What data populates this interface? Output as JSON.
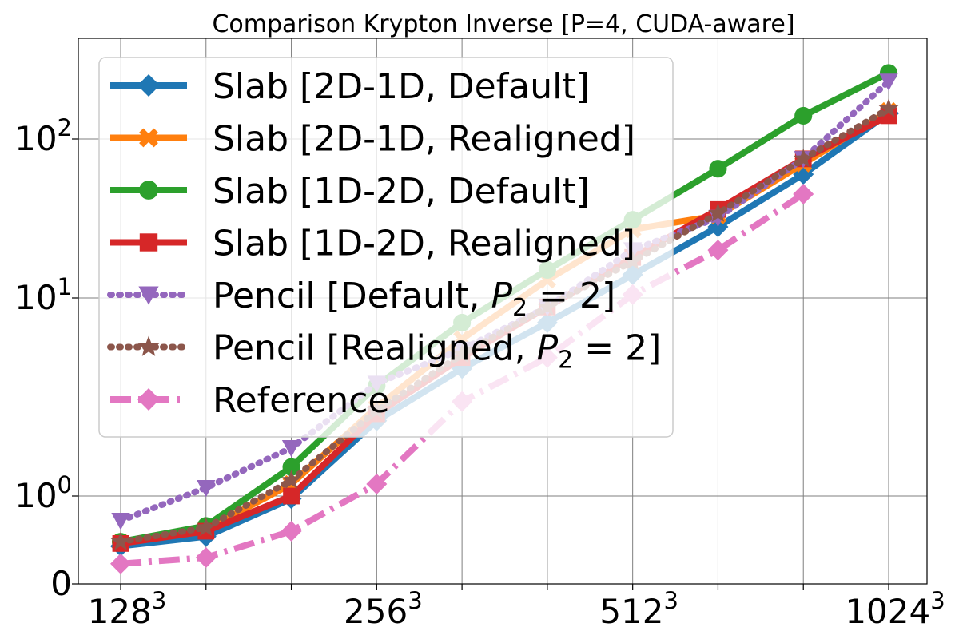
{
  "chart_data": {
    "type": "line",
    "title": "Comparison Krypton Inverse [P=4, CUDA-aware]",
    "xlabel": "",
    "ylabel": "",
    "y_scale": "symlog",
    "grid": true,
    "legend_placement": "upper-left",
    "x_ticks": [
      {
        "index": 0,
        "base": "128",
        "exp": "3"
      },
      {
        "index": 3,
        "base": "256",
        "exp": "3"
      },
      {
        "index": 6,
        "base": "512",
        "exp": "3"
      },
      {
        "index": 9,
        "base": "1024",
        "exp": "3"
      }
    ],
    "y_ticks": [
      {
        "value": 0,
        "label": "0"
      },
      {
        "value": 1,
        "base": "10",
        "exp": "0"
      },
      {
        "value": 10,
        "base": "10",
        "exp": "1"
      },
      {
        "value": 100,
        "base": "10",
        "exp": "2"
      }
    ],
    "x_count": 10,
    "series": [
      {
        "name": "Slab [2D-1D, Default]",
        "color": "#1f77b4",
        "marker": "diamond",
        "linestyle": "solid",
        "values": [
          0.43,
          0.54,
          0.97,
          2.4,
          4.4,
          7.5,
          14,
          28,
          60,
          145
        ]
      },
      {
        "name": "Slab [2D-1D, Realigned]",
        "color": "#ff7f0e",
        "marker": "x",
        "linestyle": "solid",
        "values": [
          0.47,
          0.62,
          1.15,
          2.8,
          6.2,
          13,
          27,
          33,
          70,
          150
        ]
      },
      {
        "name": "Slab [1D-2D, Default]",
        "color": "#2ca02c",
        "marker": "circle",
        "linestyle": "solid",
        "values": [
          0.48,
          0.66,
          1.4,
          3.6,
          7.5,
          15,
          31,
          65,
          140,
          260
        ]
      },
      {
        "name": "Slab [1D-2D, Realigned]",
        "color": "#d62728",
        "marker": "square",
        "linestyle": "solid",
        "values": [
          0.46,
          0.6,
          1.0,
          2.6,
          5.0,
          9,
          18,
          36,
          75,
          140
        ]
      },
      {
        "name": "Pencil [Default, P_2 = 2]",
        "label_main": "Pencil [Default, ",
        "label_var": "P",
        "label_sub": "2",
        "label_rest": " = 2]",
        "color": "#9467bd",
        "marker": "triangle-down",
        "linestyle": "dotted",
        "values": [
          0.72,
          1.1,
          1.75,
          3.7,
          5.5,
          9,
          20,
          32,
          75,
          230
        ]
      },
      {
        "name": "Pencil [Realigned, P_2 = 2]",
        "label_main": "Pencil [Realigned, ",
        "label_var": "P",
        "label_sub": "2",
        "label_rest": " = 2]",
        "color": "#8c564b",
        "marker": "star",
        "linestyle": "dotted",
        "values": [
          0.48,
          0.64,
          1.2,
          2.7,
          5.2,
          9,
          17,
          34,
          75,
          155
        ]
      },
      {
        "name": "Reference",
        "color": "#e377c2",
        "marker": "diamond",
        "linestyle": "dashdot",
        "values": [
          0.23,
          0.3,
          0.6,
          1.15,
          3.0,
          5.0,
          10.5,
          20,
          45,
          null
        ]
      }
    ]
  }
}
